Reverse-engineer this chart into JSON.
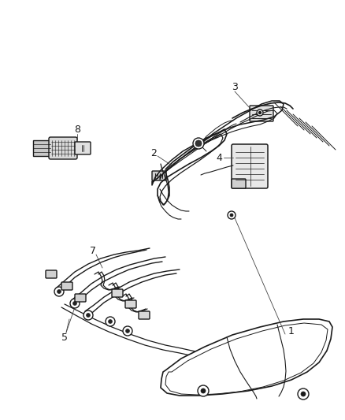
{
  "background_color": "#ffffff",
  "line_color": "#1a1a1a",
  "label_color": "#000000",
  "figsize": [
    4.38,
    5.33
  ],
  "dpi": 100,
  "label_fontsize": 9,
  "line_width": 1.0,
  "ann_color": "#444444",
  "gray": "#888888",
  "light_gray": "#cccccc",
  "med_gray": "#999999"
}
